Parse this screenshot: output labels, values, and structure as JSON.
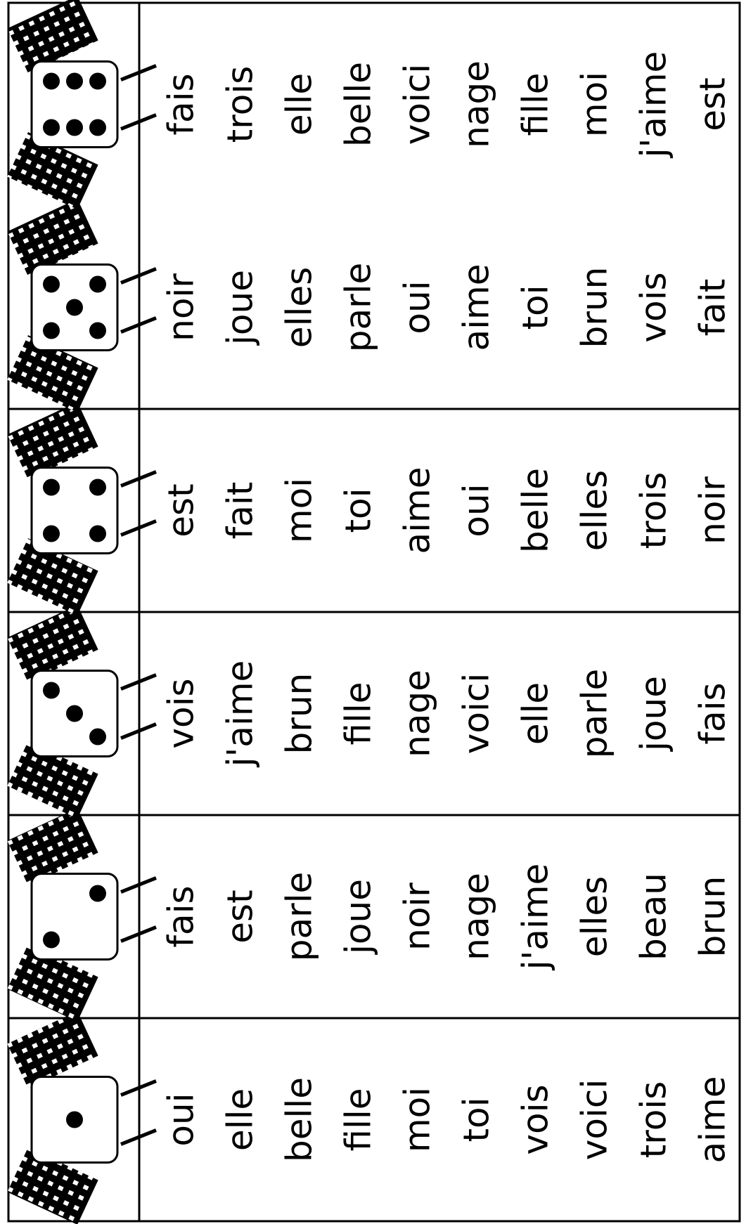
{
  "columns": [
    {
      "words": [
        "oui",
        "elle",
        "belle",
        "fille",
        "moi",
        "toi",
        "vois",
        "voici",
        "trois",
        "aime"
      ]
    },
    {
      "words": [
        "fais",
        "est",
        "parle",
        "joue",
        "noir",
        "nage",
        "j'aime",
        "elles",
        "beau",
        "brun"
      ]
    },
    {
      "words": [
        "vois",
        "j'aime",
        "brun",
        "fille",
        "nage",
        "voici",
        "elle",
        "parle",
        "joue",
        "fais"
      ]
    },
    {
      "words": [
        "est",
        "fait",
        "moi",
        "toi",
        "aime",
        "oui",
        "belle",
        "elles",
        "trois",
        "noir"
      ]
    },
    {
      "words": [
        "noir",
        "joue",
        "elles",
        "parle",
        "oui",
        "aime",
        "toi",
        "brun",
        "vois",
        "fait"
      ]
    },
    {
      "words": [
        "fais",
        "trois",
        "elle",
        "belle",
        "voici",
        "nage",
        "fille",
        "moi",
        "j'aime",
        "est"
      ]
    }
  ]
}
